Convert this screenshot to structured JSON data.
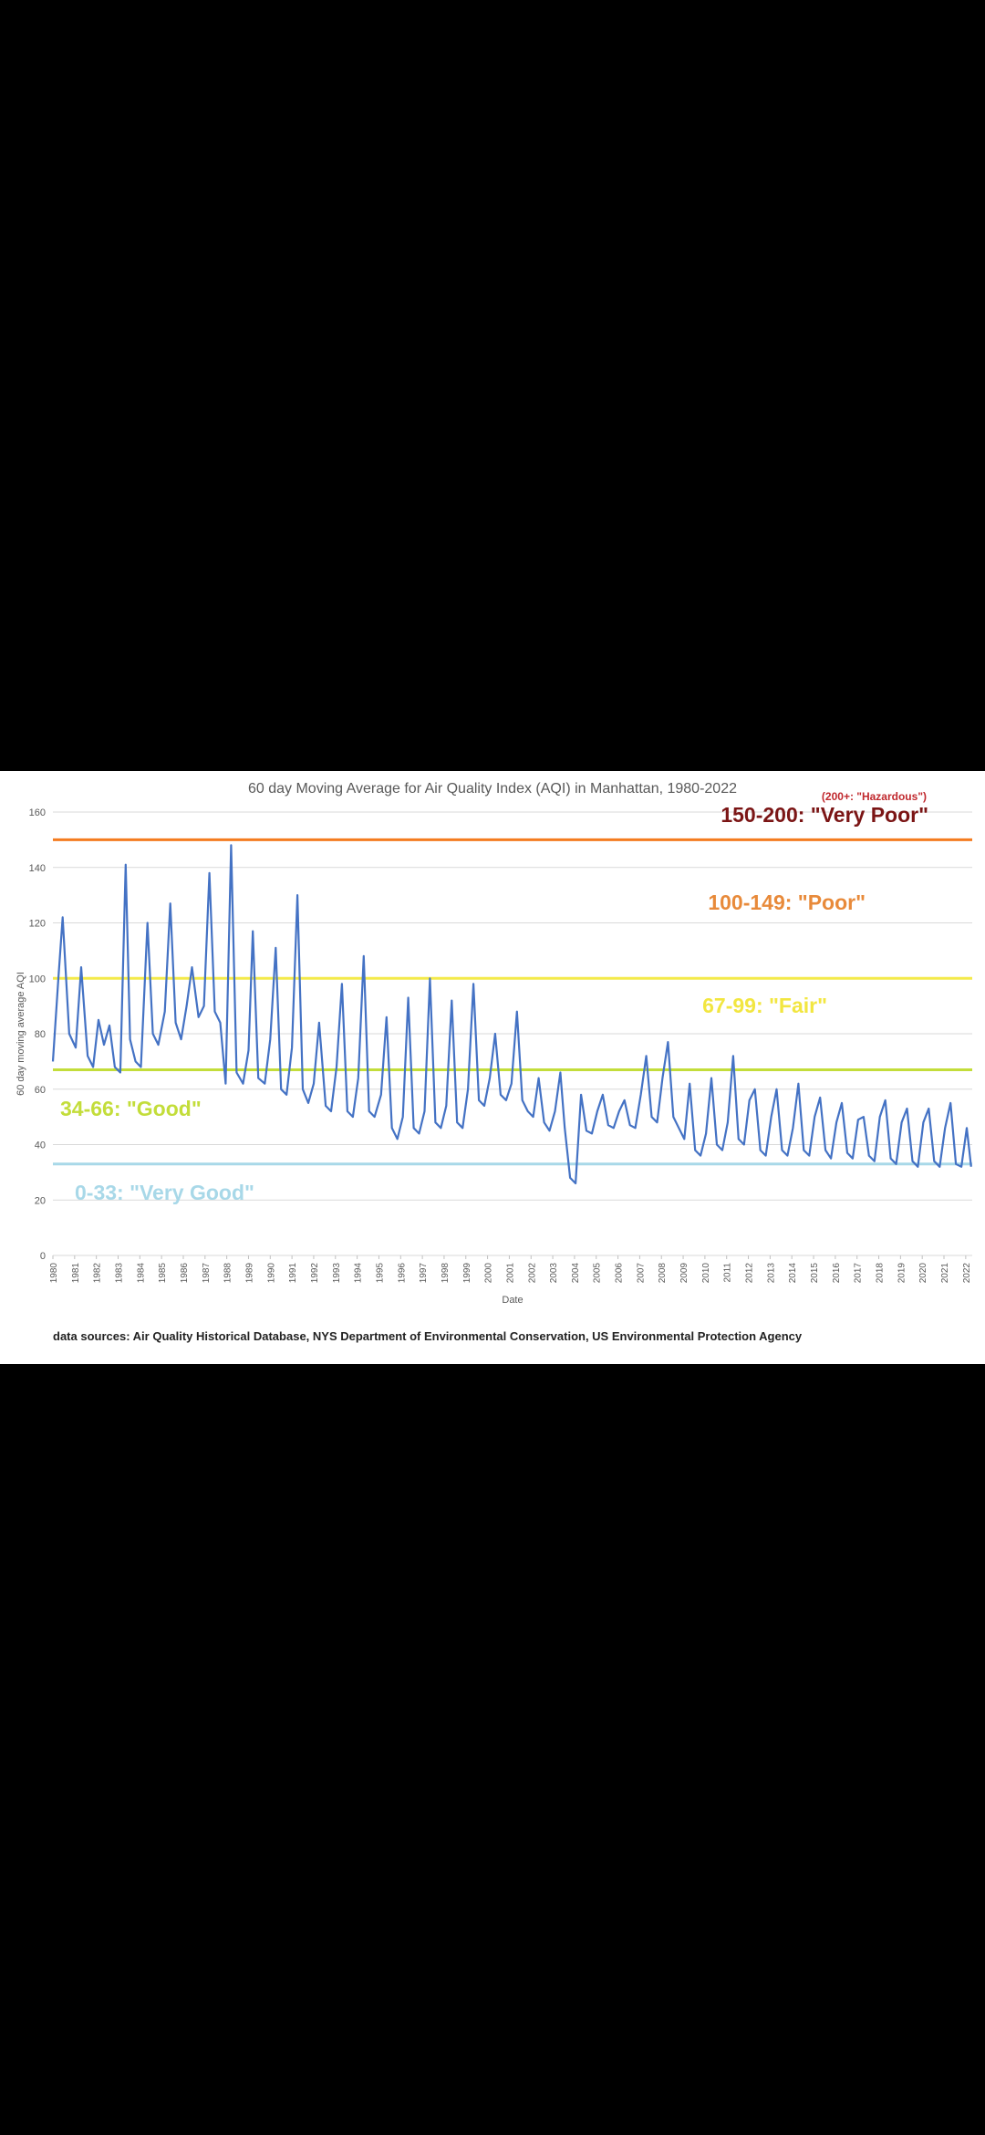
{
  "chart_data": {
    "type": "line",
    "title": "60 day Moving Average for Air Quality Index (AQI) in Manhattan, 1980-2022",
    "xlabel": "Date",
    "ylabel": "60 day moving average AQI",
    "ylim": [
      0,
      160
    ],
    "yticks": [
      "0",
      "20",
      "40",
      "60",
      "80",
      "100",
      "120",
      "140",
      "160"
    ],
    "xlim": [
      1980,
      2022.3
    ],
    "xticks": [
      "1980",
      "1981",
      "1982",
      "1983",
      "1984",
      "1985",
      "1986",
      "1987",
      "1988",
      "1989",
      "1990",
      "1991",
      "1992",
      "1993",
      "1994",
      "1995",
      "1996",
      "1997",
      "1998",
      "1999",
      "2000",
      "2001",
      "2002",
      "2003",
      "2004",
      "2005",
      "2006",
      "2007",
      "2008",
      "2009",
      "2010",
      "2011",
      "2012",
      "2013",
      "2014",
      "2015",
      "2016",
      "2017",
      "2018",
      "2019",
      "2020",
      "2021",
      "2022"
    ],
    "grid": true,
    "series": [
      {
        "color": "#4472c4",
        "x": [
          1980.0,
          1980.25,
          1980.45,
          1980.75,
          1981.05,
          1981.3,
          1981.6,
          1981.85,
          1982.1,
          1982.35,
          1982.6,
          1982.85,
          1983.1,
          1983.35,
          1983.55,
          1983.8,
          1984.05,
          1984.35,
          1984.6,
          1984.85,
          1985.15,
          1985.4,
          1985.65,
          1985.9,
          1986.15,
          1986.4,
          1986.7,
          1986.95,
          1987.2,
          1987.45,
          1987.7,
          1987.95,
          1988.2,
          1988.45,
          1988.75,
          1989.0,
          1989.2,
          1989.45,
          1989.75,
          1990.0,
          1990.25,
          1990.5,
          1990.75,
          1991.0,
          1991.25,
          1991.5,
          1991.75,
          1992.0,
          1992.25,
          1992.55,
          1992.8,
          1993.05,
          1993.3,
          1993.55,
          1993.8,
          1994.05,
          1994.3,
          1994.55,
          1994.8,
          1995.1,
          1995.35,
          1995.6,
          1995.85,
          1996.1,
          1996.35,
          1996.6,
          1996.85,
          1997.1,
          1997.35,
          1997.6,
          1997.85,
          1998.1,
          1998.35,
          1998.6,
          1998.85,
          1999.1,
          1999.35,
          1999.6,
          1999.85,
          2000.1,
          2000.35,
          2000.6,
          2000.85,
          2001.1,
          2001.35,
          2001.6,
          2001.85,
          2002.1,
          2002.35,
          2002.6,
          2002.85,
          2003.1,
          2003.35,
          2003.55,
          2003.8,
          2004.05,
          2004.3,
          2004.55,
          2004.8,
          2005.05,
          2005.3,
          2005.55,
          2005.8,
          2006.05,
          2006.3,
          2006.55,
          2006.8,
          2007.05,
          2007.3,
          2007.55,
          2007.8,
          2008.05,
          2008.3,
          2008.55,
          2008.8,
          2009.05,
          2009.3,
          2009.55,
          2009.8,
          2010.05,
          2010.3,
          2010.55,
          2010.8,
          2011.05,
          2011.3,
          2011.55,
          2011.8,
          2012.05,
          2012.3,
          2012.55,
          2012.8,
          2013.05,
          2013.3,
          2013.55,
          2013.8,
          2014.05,
          2014.3,
          2014.55,
          2014.8,
          2015.05,
          2015.3,
          2015.55,
          2015.8,
          2016.05,
          2016.3,
          2016.55,
          2016.8,
          2017.05,
          2017.3,
          2017.55,
          2017.8,
          2018.05,
          2018.3,
          2018.55,
          2018.8,
          2019.05,
          2019.3,
          2019.55,
          2019.8,
          2020.05,
          2020.3,
          2020.55,
          2020.8,
          2021.05,
          2021.3,
          2021.55,
          2021.8,
          2022.05,
          2022.25
        ],
        "y": [
          70,
          100,
          122,
          80,
          75,
          104,
          72,
          68,
          85,
          76,
          83,
          68,
          66,
          141,
          78,
          70,
          68,
          120,
          80,
          76,
          88,
          127,
          84,
          78,
          90,
          104,
          86,
          90,
          138,
          88,
          84,
          62,
          148,
          66,
          62,
          74,
          117,
          64,
          62,
          78,
          111,
          60,
          58,
          75,
          130,
          60,
          55,
          62,
          84,
          54,
          52,
          68,
          98,
          52,
          50,
          64,
          108,
          52,
          50,
          58,
          86,
          46,
          42,
          50,
          93,
          46,
          44,
          52,
          100,
          48,
          46,
          54,
          92,
          48,
          46,
          60,
          98,
          56,
          54,
          64,
          80,
          58,
          56,
          62,
          88,
          56,
          52,
          50,
          64,
          48,
          45,
          52,
          66,
          46,
          28,
          26,
          58,
          45,
          44,
          52,
          58,
          47,
          46,
          52,
          56,
          47,
          46,
          58,
          72,
          50,
          48,
          64,
          77,
          50,
          46,
          42,
          62,
          38,
          36,
          44,
          64,
          40,
          38,
          48,
          72,
          42,
          40,
          56,
          60,
          38,
          36,
          50,
          60,
          38,
          36,
          46,
          62,
          38,
          36,
          50,
          57,
          38,
          35,
          48,
          55,
          37,
          35,
          49,
          50,
          36,
          34,
          50,
          56,
          35,
          33,
          48,
          53,
          34,
          32,
          48,
          53,
          34,
          32,
          46,
          55,
          33,
          32,
          46,
          32
        ]
      }
    ],
    "bands": [
      {
        "label": "150-200: \"Very Poor\"",
        "value": 150,
        "color": "#f47c20",
        "text_color": "#7b1515"
      },
      {
        "label": "100-149: \"Poor\"",
        "value": 100,
        "color": "#f4ea4a",
        "text_color": "#e88a3a"
      },
      {
        "label": "67-99: \"Fair\"",
        "value": 67,
        "color": "#c3dd3a",
        "text_color": "#f2e640"
      },
      {
        "label": "34-66: \"Good\"",
        "value": 33,
        "color": "#a8d8e8",
        "text_color": "#c3dd3a"
      },
      {
        "label": "0-33: \"Very Good\"",
        "text_color": "#a8d8e8"
      }
    ],
    "note": "(200+: \"Hazardous\")",
    "note_color": "#c0282d"
  },
  "footer": {
    "source": "data sources: Air Quality Historical Database, NYS Department of Environmental Conservation, US Environmental Protection Agency"
  }
}
